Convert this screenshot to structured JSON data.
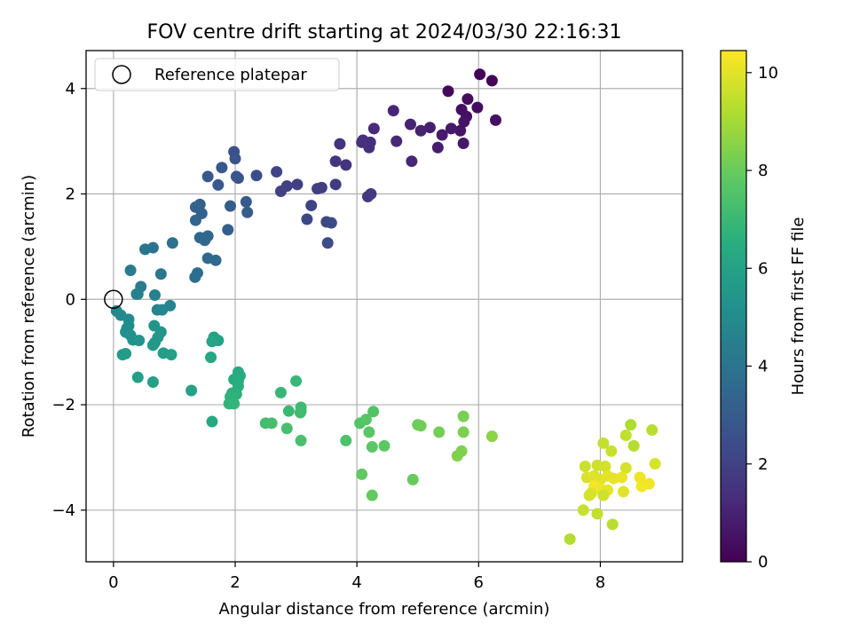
{
  "chart_data": {
    "type": "scatter",
    "title": "FOV centre drift starting at 2024/03/30 22:16:31",
    "xlabel": "Angular distance from reference (arcmin)",
    "ylabel": "Rotation from reference (arcmin)",
    "xlim": [
      -0.45,
      9.35
    ],
    "ylim": [
      -4.98,
      4.72
    ],
    "xticks": [
      0,
      2,
      4,
      6,
      8
    ],
    "yticks": [
      -4,
      -2,
      0,
      2,
      4
    ],
    "xtick_labels": [
      "0",
      "2",
      "4",
      "6",
      "8"
    ],
    "ytick_labels": [
      "−4",
      "−2",
      "0",
      "2",
      "4"
    ],
    "grid": true,
    "legend": {
      "placement": "top-left",
      "entries": [
        "Reference platepar"
      ]
    },
    "reference_point": {
      "x": 0,
      "y": 0
    },
    "colorbar": {
      "label": "Hours from first FF file",
      "colormap": "viridis",
      "range": [
        0,
        10.45
      ],
      "ticks": [
        0,
        2,
        4,
        6,
        8,
        10
      ],
      "tick_labels": [
        "0",
        "2",
        "4",
        "6",
        "8",
        "10"
      ]
    },
    "points": [
      [
        6.02,
        4.27,
        0.05
      ],
      [
        6.22,
        4.15,
        0.1
      ],
      [
        5.5,
        3.95,
        0.2
      ],
      [
        5.82,
        3.8,
        0.3
      ],
      [
        5.98,
        3.64,
        0.35
      ],
      [
        5.72,
        3.6,
        0.4
      ],
      [
        5.8,
        3.47,
        0.45
      ],
      [
        5.76,
        3.37,
        0.55
      ],
      [
        6.28,
        3.4,
        0.5
      ],
      [
        5.7,
        3.2,
        0.6
      ],
      [
        5.75,
        2.96,
        0.7
      ],
      [
        5.55,
        3.24,
        0.75
      ],
      [
        5.4,
        3.12,
        0.8
      ],
      [
        5.33,
        2.88,
        0.85
      ],
      [
        5.2,
        3.26,
        0.9
      ],
      [
        5.05,
        3.2,
        1.0
      ],
      [
        4.88,
        3.32,
        1.05
      ],
      [
        4.6,
        3.58,
        1.1
      ],
      [
        4.9,
        2.62,
        1.15
      ],
      [
        4.65,
        3.0,
        1.2
      ],
      [
        4.28,
        3.24,
        1.25
      ],
      [
        4.08,
        2.98,
        1.35
      ],
      [
        4.22,
        2.98,
        1.4
      ],
      [
        4.2,
        2.88,
        1.45
      ],
      [
        4.1,
        3.02,
        1.5
      ],
      [
        3.72,
        2.95,
        1.55
      ],
      [
        3.82,
        2.55,
        1.6
      ],
      [
        3.65,
        2.62,
        1.65
      ],
      [
        4.23,
        2.0,
        1.75
      ],
      [
        4.18,
        1.95,
        1.8
      ],
      [
        3.65,
        2.18,
        1.85
      ],
      [
        3.42,
        2.12,
        1.9
      ],
      [
        3.35,
        2.1,
        1.95
      ],
      [
        3.02,
        2.18,
        2.0
      ],
      [
        2.85,
        2.15,
        2.05
      ],
      [
        2.75,
        2.05,
        2.1
      ],
      [
        2.68,
        2.42,
        2.2
      ],
      [
        3.25,
        1.78,
        2.15
      ],
      [
        3.18,
        1.52,
        2.25
      ],
      [
        3.5,
        1.47,
        2.3
      ],
      [
        3.58,
        1.45,
        2.35
      ],
      [
        3.52,
        1.07,
        2.4
      ],
      [
        2.35,
        2.35,
        2.5
      ],
      [
        1.98,
        2.8,
        2.6
      ],
      [
        2.0,
        2.67,
        2.7
      ],
      [
        2.05,
        2.3,
        2.75
      ],
      [
        2.02,
        2.33,
        2.8
      ],
      [
        1.78,
        2.5,
        2.85
      ],
      [
        1.55,
        2.33,
        2.9
      ],
      [
        1.72,
        2.17,
        2.95
      ],
      [
        2.18,
        1.85,
        3.0
      ],
      [
        2.2,
        1.65,
        3.05
      ],
      [
        1.92,
        1.77,
        3.1
      ],
      [
        1.88,
        1.32,
        3.2
      ],
      [
        1.42,
        1.8,
        3.25
      ],
      [
        1.35,
        1.75,
        3.3
      ],
      [
        1.45,
        1.63,
        3.35
      ],
      [
        1.35,
        1.5,
        3.4
      ],
      [
        1.42,
        1.17,
        3.45
      ],
      [
        1.5,
        1.12,
        3.5
      ],
      [
        1.55,
        1.2,
        3.55
      ],
      [
        1.55,
        0.78,
        3.6
      ],
      [
        1.68,
        0.74,
        3.65
      ],
      [
        1.38,
        0.5,
        3.75
      ],
      [
        1.34,
        0.42,
        3.8
      ],
      [
        0.97,
        1.07,
        3.9
      ],
      [
        0.65,
        0.98,
        4.0
      ],
      [
        0.52,
        0.95,
        4.1
      ],
      [
        0.78,
        0.48,
        4.2
      ],
      [
        0.28,
        0.55,
        4.3
      ],
      [
        0.45,
        0.24,
        4.4
      ],
      [
        0.38,
        0.1,
        4.5
      ],
      [
        0.4,
        0.1,
        4.55
      ],
      [
        0.68,
        0.08,
        4.6
      ],
      [
        0.93,
        -0.12,
        4.7
      ],
      [
        0.72,
        -0.2,
        4.75
      ],
      [
        0.8,
        -0.2,
        4.8
      ],
      [
        0.05,
        -0.22,
        4.85
      ],
      [
        0.12,
        -0.3,
        4.95
      ],
      [
        0.25,
        -0.38,
        5.0
      ],
      [
        0.25,
        -0.5,
        5.1
      ],
      [
        0.22,
        -0.55,
        5.15
      ],
      [
        0.2,
        -0.62,
        5.2
      ],
      [
        0.28,
        -0.68,
        5.3
      ],
      [
        0.32,
        -0.77,
        5.35
      ],
      [
        0.42,
        -0.78,
        5.4
      ],
      [
        0.67,
        -0.5,
        5.45
      ],
      [
        0.78,
        -0.62,
        5.5
      ],
      [
        0.73,
        -0.72,
        5.55
      ],
      [
        0.68,
        -0.82,
        5.6
      ],
      [
        0.65,
        -0.87,
        5.65
      ],
      [
        0.15,
        -1.05,
        5.7
      ],
      [
        0.2,
        -1.03,
        5.75
      ],
      [
        0.82,
        -1.02,
        5.8
      ],
      [
        0.95,
        -1.05,
        5.85
      ],
      [
        0.4,
        -1.48,
        5.9
      ],
      [
        0.65,
        -1.57,
        5.95
      ],
      [
        1.28,
        -1.73,
        6.0
      ],
      [
        1.65,
        -0.72,
        6.05
      ],
      [
        1.72,
        -0.78,
        6.1
      ],
      [
        1.62,
        -0.8,
        6.15
      ],
      [
        1.6,
        -1.1,
        6.2
      ],
      [
        1.62,
        -2.32,
        6.3
      ],
      [
        2.05,
        -1.38,
        6.4
      ],
      [
        2.08,
        -1.45,
        6.45
      ],
      [
        1.98,
        -1.52,
        6.5
      ],
      [
        2.05,
        -1.55,
        6.55
      ],
      [
        2.05,
        -1.65,
        6.6
      ],
      [
        1.95,
        -1.78,
        6.65
      ],
      [
        2.02,
        -1.8,
        6.7
      ],
      [
        1.92,
        -1.85,
        6.75
      ],
      [
        1.9,
        -1.98,
        6.8
      ],
      [
        1.98,
        -1.98,
        6.85
      ],
      [
        2.75,
        -1.77,
        6.95
      ],
      [
        3.0,
        -1.55,
        7.0
      ],
      [
        2.88,
        -2.12,
        7.05
      ],
      [
        3.08,
        -2.05,
        7.1
      ],
      [
        3.08,
        -2.12,
        7.15
      ],
      [
        3.07,
        -2.15,
        7.2
      ],
      [
        2.5,
        -2.35,
        7.25
      ],
      [
        2.6,
        -2.35,
        7.3
      ],
      [
        2.85,
        -2.45,
        7.35
      ],
      [
        3.08,
        -2.68,
        7.4
      ],
      [
        3.82,
        -2.68,
        7.5
      ],
      [
        4.27,
        -2.13,
        7.6
      ],
      [
        4.05,
        -2.35,
        7.65
      ],
      [
        4.15,
        -2.28,
        7.7
      ],
      [
        4.2,
        -2.52,
        7.75
      ],
      [
        4.25,
        -2.8,
        7.8
      ],
      [
        4.45,
        -2.78,
        7.85
      ],
      [
        4.08,
        -3.32,
        7.9
      ],
      [
        4.25,
        -3.72,
        7.95
      ],
      [
        4.92,
        -3.42,
        8.0
      ],
      [
        5.0,
        -2.38,
        8.1
      ],
      [
        5.05,
        -2.4,
        8.15
      ],
      [
        5.35,
        -2.52,
        8.2
      ],
      [
        5.75,
        -2.22,
        8.3
      ],
      [
        5.75,
        -2.52,
        8.35
      ],
      [
        5.72,
        -2.88,
        8.4
      ],
      [
        5.65,
        -2.97,
        8.45
      ],
      [
        6.22,
        -2.6,
        8.6
      ],
      [
        8.5,
        -2.38,
        9.2
      ],
      [
        8.55,
        -2.78,
        9.3
      ],
      [
        8.85,
        -2.48,
        9.4
      ],
      [
        8.42,
        -2.58,
        9.5
      ],
      [
        8.05,
        -2.73,
        9.55
      ],
      [
        8.18,
        -2.88,
        9.6
      ],
      [
        7.75,
        -3.17,
        9.65
      ],
      [
        7.95,
        -3.15,
        9.7
      ],
      [
        8.08,
        -3.17,
        9.75
      ],
      [
        8.42,
        -3.2,
        9.8
      ],
      [
        8.9,
        -3.12,
        9.85
      ],
      [
        7.78,
        -3.38,
        9.9
      ],
      [
        7.9,
        -3.35,
        9.95
      ],
      [
        8.0,
        -3.42,
        10.0
      ],
      [
        8.12,
        -3.35,
        10.05
      ],
      [
        8.22,
        -3.4,
        10.1
      ],
      [
        8.35,
        -3.38,
        10.15
      ],
      [
        8.65,
        -3.38,
        10.2
      ],
      [
        8.8,
        -3.5,
        10.25
      ],
      [
        8.68,
        -3.55,
        10.3
      ],
      [
        7.9,
        -3.55,
        10.35
      ],
      [
        8.0,
        -3.6,
        10.2
      ],
      [
        8.12,
        -3.62,
        10.1
      ],
      [
        8.38,
        -3.65,
        10.0
      ],
      [
        7.85,
        -3.68,
        9.9
      ],
      [
        7.82,
        -3.72,
        9.8
      ],
      [
        8.05,
        -3.72,
        9.7
      ],
      [
        7.72,
        -4.0,
        9.6
      ],
      [
        7.95,
        -4.07,
        9.5
      ],
      [
        8.2,
        -4.27,
        9.4
      ],
      [
        7.5,
        -4.55,
        9.3
      ]
    ]
  }
}
